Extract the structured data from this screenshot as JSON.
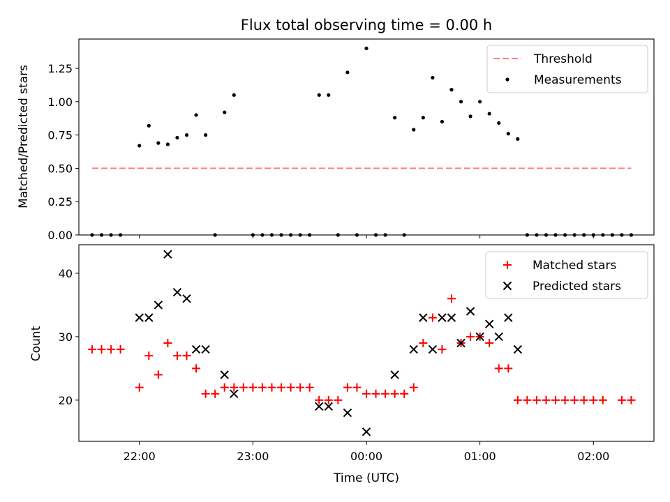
{
  "figure": {
    "title": "Flux total observing time = 0.00 h"
  },
  "chart_data": [
    {
      "type": "scatter",
      "panel": "top",
      "xlabel": "",
      "ylabel": "Matched/Predicted stars",
      "ylim": [
        0,
        1.47
      ],
      "yticks": [
        0,
        0.25,
        0.5,
        0.75,
        1.0,
        1.25
      ],
      "ytick_labels": [
        "0.00",
        "0.25",
        "0.50",
        "0.75",
        "1.00",
        "1.25"
      ],
      "legend_position": "top-right",
      "series": [
        {
          "name": "Threshold",
          "kind": "dashed-line",
          "color": "#ff7f7f",
          "x": [
            "21:35",
            "23:55",
            "02:20"
          ],
          "y": [
            0.5,
            0.5,
            0.5
          ]
        },
        {
          "name": "Measurements",
          "kind": "points",
          "color": "#000000",
          "x": [
            "21:35",
            "21:40",
            "21:45",
            "21:50",
            "22:00",
            "22:05",
            "22:10",
            "22:15",
            "22:20",
            "22:25",
            "22:30",
            "22:35",
            "22:40",
            "22:45",
            "22:50",
            "23:00",
            "23:05",
            "23:10",
            "23:15",
            "23:20",
            "23:25",
            "23:30",
            "23:35",
            "23:40",
            "23:45",
            "23:50",
            "23:55",
            "00:00",
            "00:05",
            "00:10",
            "00:15",
            "00:20",
            "00:25",
            "00:30",
            "00:35",
            "00:40",
            "00:45",
            "00:50",
            "00:55",
            "01:00",
            "01:05",
            "01:10",
            "01:15",
            "01:20",
            "01:25",
            "01:30",
            "01:35",
            "01:40",
            "01:45",
            "01:50",
            "01:55",
            "02:00",
            "02:05",
            "02:10",
            "02:15",
            "02:20"
          ],
          "y": [
            0,
            0,
            0,
            0,
            0.67,
            0.82,
            0.69,
            0.68,
            0.73,
            0.75,
            0.9,
            0.75,
            0,
            0.92,
            1.05,
            0,
            0,
            0,
            0,
            0,
            0,
            0,
            1.05,
            1.05,
            0,
            1.22,
            0,
            1.4,
            0,
            0,
            0.88,
            0,
            0.79,
            0.88,
            1.18,
            0.85,
            1.09,
            1.0,
            0.89,
            1.0,
            0.91,
            0.84,
            0.76,
            0.72,
            0,
            0,
            0,
            0,
            0,
            0,
            0,
            0,
            0,
            0,
            0,
            0
          ]
        }
      ]
    },
    {
      "type": "scatter",
      "panel": "bottom",
      "xlabel": "Time (UTC)",
      "ylabel": "Count",
      "ylim": [
        13.5,
        44.5
      ],
      "yticks": [
        20,
        30,
        40
      ],
      "ytick_labels": [
        "20",
        "30",
        "40"
      ],
      "xlim": [
        "21:28",
        "02:32"
      ],
      "xticks": [
        "22:00",
        "23:00",
        "00:00",
        "01:00",
        "02:00"
      ],
      "legend_position": "top-right",
      "series": [
        {
          "name": "Matched stars",
          "marker": "+",
          "color": "#ff0000",
          "x": [
            "21:35",
            "21:40",
            "21:45",
            "21:50",
            "22:00",
            "22:05",
            "22:10",
            "22:15",
            "22:20",
            "22:25",
            "22:30",
            "22:35",
            "22:40",
            "22:45",
            "22:50",
            "22:55",
            "23:00",
            "23:05",
            "23:10",
            "23:15",
            "23:20",
            "23:25",
            "23:30",
            "23:35",
            "23:40",
            "23:45",
            "23:50",
            "23:55",
            "00:00",
            "00:05",
            "00:10",
            "00:15",
            "00:20",
            "00:25",
            "00:30",
            "00:35",
            "00:40",
            "00:45",
            "00:50",
            "00:55",
            "01:00",
            "01:05",
            "01:10",
            "01:15",
            "01:20",
            "01:25",
            "01:30",
            "01:35",
            "01:40",
            "01:45",
            "01:50",
            "01:55",
            "02:00",
            "02:05",
            "02:15",
            "02:20"
          ],
          "y": [
            28,
            28,
            28,
            28,
            22,
            27,
            24,
            29,
            27,
            27,
            25,
            21,
            21,
            22,
            22,
            22,
            22,
            22,
            22,
            22,
            22,
            22,
            22,
            20,
            20,
            20,
            22,
            22,
            21,
            21,
            21,
            21,
            21,
            22,
            29,
            33,
            28,
            36,
            29,
            30,
            30,
            29,
            25,
            25,
            20,
            20,
            20,
            20,
            20,
            20,
            20,
            20,
            20,
            20,
            20,
            20
          ]
        },
        {
          "name": "Predicted stars",
          "marker": "x",
          "color": "#000000",
          "x": [
            "22:00",
            "22:05",
            "22:10",
            "22:15",
            "22:20",
            "22:25",
            "22:30",
            "22:35",
            "22:45",
            "22:50",
            "23:35",
            "23:40",
            "23:50",
            "00:00",
            "00:15",
            "00:25",
            "00:30",
            "00:35",
            "00:40",
            "00:45",
            "00:50",
            "00:55",
            "01:00",
            "01:05",
            "01:10",
            "01:15",
            "01:20"
          ],
          "y": [
            33,
            33,
            35,
            43,
            37,
            36,
            28,
            28,
            24,
            21,
            19,
            19,
            18,
            15,
            24,
            28,
            33,
            28,
            33,
            33,
            29,
            34,
            30,
            32,
            30,
            33,
            28
          ]
        }
      ]
    }
  ]
}
